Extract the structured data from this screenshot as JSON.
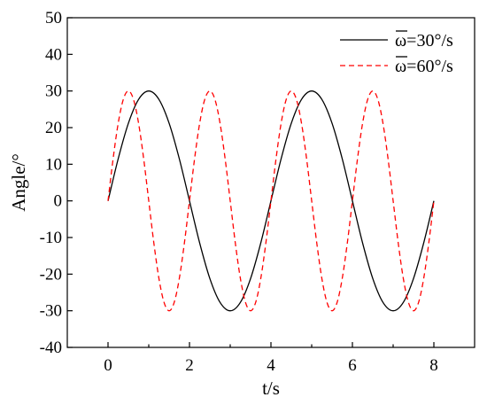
{
  "chart_data": {
    "type": "line",
    "xlabel": "t/s",
    "ylabel": "Angle/°",
    "xlim": [
      -1,
      9
    ],
    "ylim": [
      -40,
      50
    ],
    "x_ticks": [
      "0",
      "2",
      "4",
      "6",
      "8"
    ],
    "y_ticks": [
      "-40",
      "-30",
      "-20",
      "-10",
      "0",
      "10",
      "20",
      "30",
      "40",
      "50"
    ],
    "grid": false,
    "legend_position": "top-right",
    "series": [
      {
        "name": "ω̄=30°/s",
        "legend_symbol": "ω",
        "legend_rest": "=30°/s",
        "color": "#000000",
        "style": "solid",
        "x": [
          0,
          0.25,
          0.5,
          0.75,
          1,
          1.25,
          1.5,
          1.75,
          2,
          2.25,
          2.5,
          2.75,
          3,
          3.25,
          3.5,
          3.75,
          4,
          4.25,
          4.5,
          4.75,
          5,
          5.25,
          5.5,
          5.75,
          6,
          6.25,
          6.5,
          6.75,
          7,
          7.25,
          7.5,
          7.75,
          8
        ],
        "y": [
          0,
          11.5,
          21.2,
          27.7,
          30,
          27.7,
          21.2,
          11.5,
          0,
          -11.5,
          -21.2,
          -27.7,
          -30,
          -27.7,
          -21.2,
          -11.5,
          0,
          11.5,
          21.2,
          27.7,
          30,
          27.7,
          21.2,
          11.5,
          0,
          -11.5,
          -21.2,
          -27.7,
          -30,
          -27.7,
          -21.2,
          -11.5,
          0
        ]
      },
      {
        "name": "ω̄=60°/s",
        "legend_symbol": "ω",
        "legend_rest": "=60°/s",
        "color": "#ff0000",
        "style": "dashed",
        "x": [
          0,
          0.125,
          0.25,
          0.375,
          0.5,
          0.625,
          0.75,
          0.875,
          1,
          1.125,
          1.25,
          1.375,
          1.5,
          1.625,
          1.75,
          1.875,
          2,
          2.125,
          2.25,
          2.375,
          2.5,
          2.625,
          2.75,
          2.875,
          3,
          3.125,
          3.25,
          3.375,
          3.5,
          3.625,
          3.75,
          3.875,
          4,
          4.125,
          4.25,
          4.375,
          4.5,
          4.625,
          4.75,
          4.875,
          5,
          5.125,
          5.25,
          5.375,
          5.5,
          5.625,
          5.75,
          5.875,
          6,
          6.125,
          6.25,
          6.375,
          6.5,
          6.625,
          6.75,
          6.875,
          7,
          7.125,
          7.25,
          7.375,
          7.5,
          7.625,
          7.75,
          7.875,
          8
        ],
        "y": [
          0,
          11.5,
          21.2,
          27.7,
          30,
          27.7,
          21.2,
          11.5,
          0,
          -11.5,
          -21.2,
          -27.7,
          -30,
          -27.7,
          -21.2,
          -11.5,
          0,
          11.5,
          21.2,
          27.7,
          30,
          27.7,
          21.2,
          11.5,
          0,
          -11.5,
          -21.2,
          -27.7,
          -30,
          -27.7,
          -21.2,
          -11.5,
          0,
          11.5,
          21.2,
          27.7,
          30,
          27.7,
          21.2,
          11.5,
          0,
          -11.5,
          -21.2,
          -27.7,
          -30,
          -27.7,
          -21.2,
          -11.5,
          0,
          11.5,
          21.2,
          27.7,
          30,
          27.7,
          21.2,
          11.5,
          0,
          -11.5,
          -21.2,
          -27.7,
          -30,
          -27.7,
          -21.2,
          -11.5,
          0
        ]
      }
    ]
  }
}
